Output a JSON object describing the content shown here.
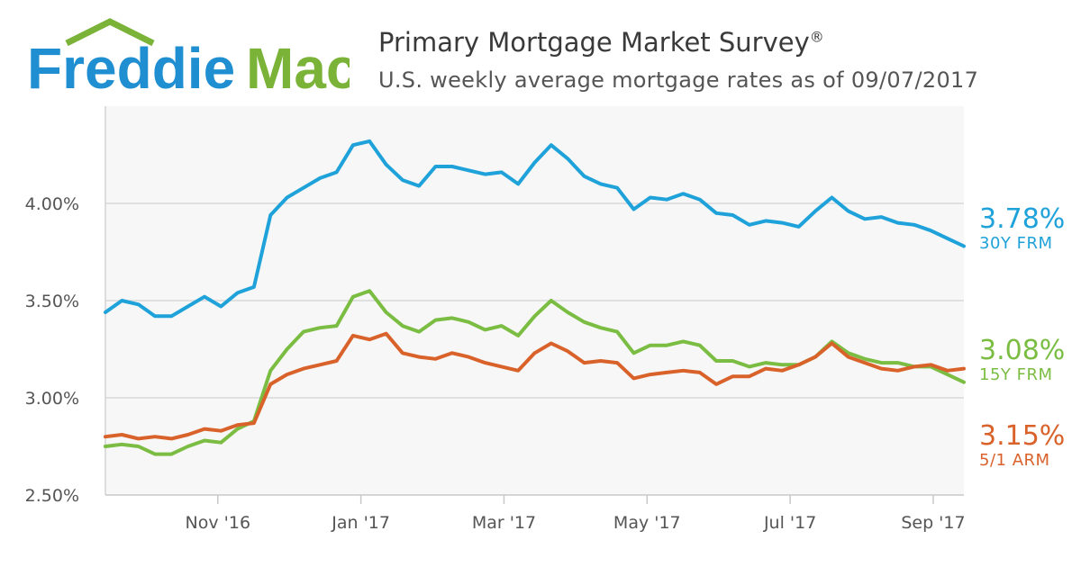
{
  "logo": {
    "word1": "Freddie",
    "word2": "Mac",
    "blue": "#1f8fd1",
    "green": "#7ab338"
  },
  "header": {
    "title": "Primary Mortgage Market Survey",
    "title_mark": "®",
    "subtitle": "U.S. weekly average mortgage rates as of 09/07/2017"
  },
  "chart_data": {
    "type": "line",
    "grid": true,
    "ylim": [
      2.5,
      4.5
    ],
    "y_ticks": [
      2.5,
      3.0,
      3.5,
      4.0
    ],
    "y_tick_labels": [
      "2.50%",
      "3.00%",
      "3.50%",
      "4.00%"
    ],
    "x_tick_labels": [
      "Nov '16",
      "Jan '17",
      "Mar '17",
      "May '17",
      "Jul '17",
      "Sep '17"
    ],
    "x_tick_weeks": [
      5.5,
      12.5,
      19.5,
      26.5,
      33.5,
      40.5
    ],
    "weeks": 42,
    "series": [
      {
        "name": "30Y FRM",
        "color": "#1ea2d9",
        "last_value_label": "3.78%",
        "values": [
          3.44,
          3.5,
          3.48,
          3.42,
          3.42,
          3.47,
          3.52,
          3.47,
          3.54,
          3.57,
          3.94,
          4.03,
          4.08,
          4.13,
          4.16,
          4.3,
          4.32,
          4.2,
          4.12,
          4.09,
          4.19,
          4.19,
          4.17,
          4.15,
          4.16,
          4.1,
          4.21,
          4.3,
          4.23,
          4.14,
          4.1,
          4.08,
          3.97,
          4.03,
          4.02,
          4.05,
          4.02,
          3.95,
          3.94,
          3.89,
          3.91,
          3.9,
          3.88,
          3.96,
          4.03,
          3.96,
          3.92,
          3.93,
          3.9,
          3.89,
          3.86,
          3.82,
          3.78
        ]
      },
      {
        "name": "15Y FRM",
        "color": "#7bbd42",
        "last_value_label": "3.08%",
        "values": [
          2.75,
          2.76,
          2.75,
          2.71,
          2.71,
          2.75,
          2.78,
          2.77,
          2.84,
          2.88,
          3.14,
          3.25,
          3.34,
          3.36,
          3.37,
          3.52,
          3.55,
          3.44,
          3.37,
          3.34,
          3.4,
          3.41,
          3.39,
          3.35,
          3.37,
          3.32,
          3.42,
          3.5,
          3.44,
          3.39,
          3.36,
          3.34,
          3.23,
          3.27,
          3.27,
          3.29,
          3.27,
          3.19,
          3.19,
          3.16,
          3.18,
          3.17,
          3.17,
          3.21,
          3.29,
          3.23,
          3.2,
          3.18,
          3.18,
          3.16,
          3.16,
          3.12,
          3.08
        ]
      },
      {
        "name": "5/1 ARM",
        "color": "#d9622b",
        "last_value_label": "3.15%",
        "values": [
          2.8,
          2.81,
          2.79,
          2.8,
          2.79,
          2.81,
          2.84,
          2.83,
          2.86,
          2.87,
          3.07,
          3.12,
          3.15,
          3.17,
          3.19,
          3.32,
          3.3,
          3.33,
          3.23,
          3.21,
          3.2,
          3.23,
          3.21,
          3.18,
          3.16,
          3.14,
          3.23,
          3.28,
          3.24,
          3.18,
          3.19,
          3.18,
          3.1,
          3.12,
          3.13,
          3.14,
          3.13,
          3.07,
          3.11,
          3.11,
          3.15,
          3.14,
          3.17,
          3.21,
          3.28,
          3.21,
          3.18,
          3.15,
          3.14,
          3.16,
          3.17,
          3.14,
          3.15
        ]
      }
    ]
  }
}
